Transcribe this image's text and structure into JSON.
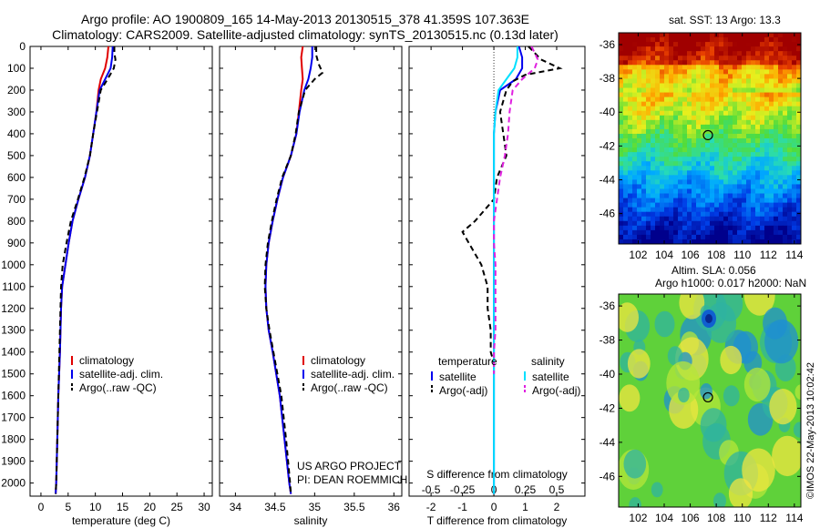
{
  "figure": {
    "title_line1": "Argo profile: AO 1900809_165 14-May-2013 20130515_378 41.359S 107.363E",
    "title_line2": "Climatology: CARS2009. Satellite-adjusted climatology: synTS_20130515.nc (0.13d later)",
    "credit_line1": "US ARGO PROJECT",
    "credit_line2": "PI: DEAN ROEMMICH",
    "stamp": "©IMOS 22-May-2013 10:02:42"
  },
  "colors": {
    "climatology": "#e00000",
    "satellite": "#0000ee",
    "argo": "#000000",
    "satellite_salinity": "#00e0ff",
    "argo_adj_salinity": "#e020e0",
    "frame": "#000000"
  },
  "chart_data": [
    {
      "type": "line",
      "xlabel": "temperature (deg C)",
      "ylabel": "",
      "xlim": [
        -2,
        31.5
      ],
      "ylim": [
        2060,
        0
      ],
      "xticks": [
        "0",
        "5",
        "10",
        "15",
        "20",
        "25",
        "30"
      ],
      "yticks": [
        "0",
        "100",
        "200",
        "300",
        "400",
        "500",
        "600",
        "700",
        "800",
        "900",
        "1000",
        "1100",
        "1200",
        "1300",
        "1400",
        "1500",
        "1600",
        "1700",
        "1800",
        "1900",
        "2000"
      ],
      "legend": [
        "climatology",
        "satellite-adj. clim.",
        "Argo(..raw -QC)"
      ],
      "series": [
        {
          "name": "climatology",
          "style": "solid",
          "color_key": "climatology",
          "depth": [
            0,
            50,
            100,
            150,
            200,
            300,
            400,
            500,
            600,
            700,
            800,
            900,
            1000,
            1100,
            1200,
            1300,
            1400,
            1600,
            1800,
            2000,
            2050
          ],
          "values": [
            12.4,
            12.2,
            11.8,
            11.0,
            10.6,
            10.2,
            9.6,
            9.0,
            8.1,
            6.9,
            5.8,
            5.1,
            4.5,
            3.9,
            3.7,
            3.6,
            3.5,
            3.2,
            3.0,
            2.8,
            2.7
          ]
        },
        {
          "name": "satellite-adj. clim.",
          "style": "solid",
          "color_key": "satellite",
          "depth": [
            0,
            50,
            100,
            150,
            200,
            300,
            400,
            500,
            600,
            700,
            800,
            900,
            1000,
            1100,
            1200,
            1300,
            1400,
            1600,
            1800,
            2000,
            2050
          ],
          "values": [
            13.2,
            13.1,
            12.8,
            11.8,
            10.8,
            10.2,
            9.6,
            9.0,
            8.1,
            6.9,
            5.8,
            5.1,
            4.5,
            3.9,
            3.7,
            3.6,
            3.5,
            3.2,
            3.0,
            2.8,
            2.7
          ]
        },
        {
          "name": "Argo(..raw -QC)",
          "style": "dashed",
          "color_key": "argo",
          "depth": [
            0,
            30,
            60,
            100,
            130,
            160,
            200,
            300,
            400,
            500,
            600,
            700,
            800,
            900,
            1000,
            1100,
            1200,
            1300,
            1400,
            1600,
            1800,
            2000,
            2050
          ],
          "values": [
            13.5,
            13.5,
            13.7,
            13.4,
            12.7,
            12.0,
            11.0,
            10.3,
            9.6,
            9.0,
            8.0,
            6.8,
            5.5,
            4.7,
            4.0,
            3.7,
            3.6,
            3.5,
            3.4,
            3.2,
            3.0,
            2.8,
            2.7
          ]
        }
      ]
    },
    {
      "type": "line",
      "xlabel": "salinity",
      "ylabel": "",
      "xlim": [
        33.8,
        36.1
      ],
      "ylim": [
        2060,
        0
      ],
      "xticks": [
        "34",
        "34.5",
        "35",
        "35.5",
        "36"
      ],
      "legend": [
        "climatology",
        "satellite-adj. clim.",
        "Argo(..raw -QC)"
      ],
      "series": [
        {
          "name": "climatology",
          "style": "solid",
          "color_key": "climatology",
          "depth": [
            0,
            50,
            100,
            150,
            200,
            300,
            400,
            500,
            600,
            700,
            800,
            900,
            1000,
            1100,
            1200,
            1300,
            1400,
            1600,
            1800,
            2000,
            2050
          ],
          "values": [
            34.85,
            34.83,
            34.84,
            34.85,
            34.83,
            34.8,
            34.77,
            34.7,
            34.6,
            34.53,
            34.47,
            34.42,
            34.39,
            34.38,
            34.39,
            34.42,
            34.47,
            34.56,
            34.62,
            34.68,
            34.7
          ]
        },
        {
          "name": "satellite-adj. clim.",
          "style": "solid",
          "color_key": "satellite",
          "depth": [
            0,
            50,
            100,
            150,
            200,
            300,
            400,
            500,
            600,
            700,
            800,
            900,
            1000,
            1100,
            1200,
            1300,
            1400,
            1600,
            1800,
            2000,
            2050
          ],
          "values": [
            34.97,
            34.97,
            34.95,
            34.92,
            34.87,
            34.81,
            34.77,
            34.7,
            34.6,
            34.53,
            34.47,
            34.42,
            34.39,
            34.38,
            34.39,
            34.42,
            34.47,
            34.56,
            34.62,
            34.68,
            34.7
          ]
        },
        {
          "name": "Argo(..raw -QC)",
          "style": "dashed",
          "color_key": "argo",
          "depth": [
            0,
            40,
            80,
            120,
            150,
            200,
            300,
            400,
            500,
            600,
            700,
            800,
            900,
            1000,
            1100,
            1200,
            1300,
            1400,
            1600,
            1800,
            2000,
            2050
          ],
          "values": [
            35.02,
            35.02,
            35.05,
            35.1,
            35.0,
            34.88,
            34.8,
            34.76,
            34.7,
            34.59,
            34.52,
            34.46,
            34.41,
            34.38,
            34.37,
            34.39,
            34.43,
            34.48,
            34.58,
            34.64,
            34.69,
            34.7
          ]
        }
      ]
    },
    {
      "type": "line",
      "xlabel": "T difference from climatology",
      "top_xlabel": "S difference from climatology",
      "xlim": [
        -2.7,
        2.9
      ],
      "ylim": [
        2060,
        0
      ],
      "xticks": [
        "-2",
        "-1",
        "0",
        "1",
        "2"
      ],
      "top_xticks": [
        "-0.5",
        "-0.25",
        "0",
        "0.25",
        "0.5"
      ],
      "legend_headers": [
        "temperature",
        "salinity"
      ],
      "legend": [
        "satellite",
        "Argo(-adj)",
        "satellite",
        "Argo(-adj)"
      ],
      "series": [
        {
          "name": "satellite",
          "quantity": "temperature",
          "style": "solid",
          "color_key": "satellite",
          "depth": [
            0,
            50,
            100,
            150,
            200,
            300,
            400,
            500,
            600,
            800,
            1000,
            1200,
            1400,
            1600,
            1800,
            2000,
            2050
          ],
          "values": [
            0.8,
            0.9,
            0.9,
            0.7,
            0.2,
            0.05,
            0,
            0,
            0,
            0,
            0,
            0,
            0,
            0,
            0,
            0,
            0
          ]
        },
        {
          "name": "Argo(-adj)",
          "quantity": "temperature",
          "style": "dashed",
          "color_key": "argo",
          "depth": [
            0,
            30,
            60,
            100,
            130,
            160,
            200,
            300,
            400,
            500,
            600,
            700,
            800,
            850,
            900,
            950,
            1000,
            1100,
            1200,
            1300,
            1400,
            1450
          ],
          "values": [
            1.1,
            1.3,
            1.5,
            2.1,
            1.0,
            0.6,
            0.4,
            0.2,
            0.3,
            0.4,
            0.1,
            0,
            -0.6,
            -1.0,
            -0.8,
            -0.6,
            -0.4,
            -0.2,
            -0.2,
            -0.1,
            -0.1,
            0
          ]
        },
        {
          "name": "satellite",
          "quantity": "salinity",
          "style": "solid",
          "color_key": "satellite_salinity",
          "depth": [
            0,
            50,
            100,
            150,
            200,
            300,
            400,
            500,
            600,
            800,
            1000,
            1200,
            1400,
            1600,
            1800,
            2000,
            2050
          ],
          "values": [
            0.75,
            0.75,
            0.65,
            0.4,
            0.15,
            0.05,
            0,
            0,
            0,
            0,
            0,
            0,
            0,
            0,
            0,
            0,
            0
          ]
        },
        {
          "name": "Argo(-adj)",
          "quantity": "salinity",
          "style": "dashed",
          "color_key": "argo_adj_salinity",
          "depth": [
            0,
            30,
            60,
            100,
            150,
            200,
            300,
            400,
            500,
            600,
            700,
            800,
            900,
            1000,
            1100,
            1200,
            1300,
            1400,
            1500
          ],
          "values": [
            1.2,
            1.3,
            1.4,
            1.3,
            0.9,
            0.6,
            0.5,
            0.45,
            0.35,
            0.2,
            0.1,
            0,
            0,
            0.05,
            0.05,
            0.05,
            0.05,
            0,
            0
          ]
        }
      ]
    },
    {
      "type": "heatmap",
      "title": "sat. SST: 13 Argo: 13.3",
      "xticks": [
        "102",
        "104",
        "106",
        "108",
        "110",
        "112",
        "114"
      ],
      "yticks": [
        "-36",
        "-38",
        "-40",
        "-42",
        "-44",
        "-46"
      ],
      "xlim": [
        100.5,
        114.5
      ],
      "ylim": [
        -47.8,
        -35.3
      ],
      "marker": {
        "lon": 107.363,
        "lat": -41.359
      },
      "pattern": "warm in the north (top, dark red), cooling southward through orange, yellow, green to blue in the south"
    },
    {
      "type": "heatmap",
      "title_line1": "Altim. SLA: 0.056",
      "title_line2": "Argo h1000: 0.017 h2000: NaN",
      "xticks": [
        "102",
        "104",
        "106",
        "108",
        "110",
        "112",
        "114"
      ],
      "yticks": [
        "-36",
        "-38",
        "-40",
        "-42",
        "-44",
        "-46"
      ],
      "xlim": [
        100.5,
        114.5
      ],
      "ylim": [
        -47.8,
        -35.3
      ],
      "marker": {
        "lon": 107.363,
        "lat": -41.359
      },
      "pattern": "mostly green field with scattered cyan/blue and yellow eddies"
    }
  ]
}
